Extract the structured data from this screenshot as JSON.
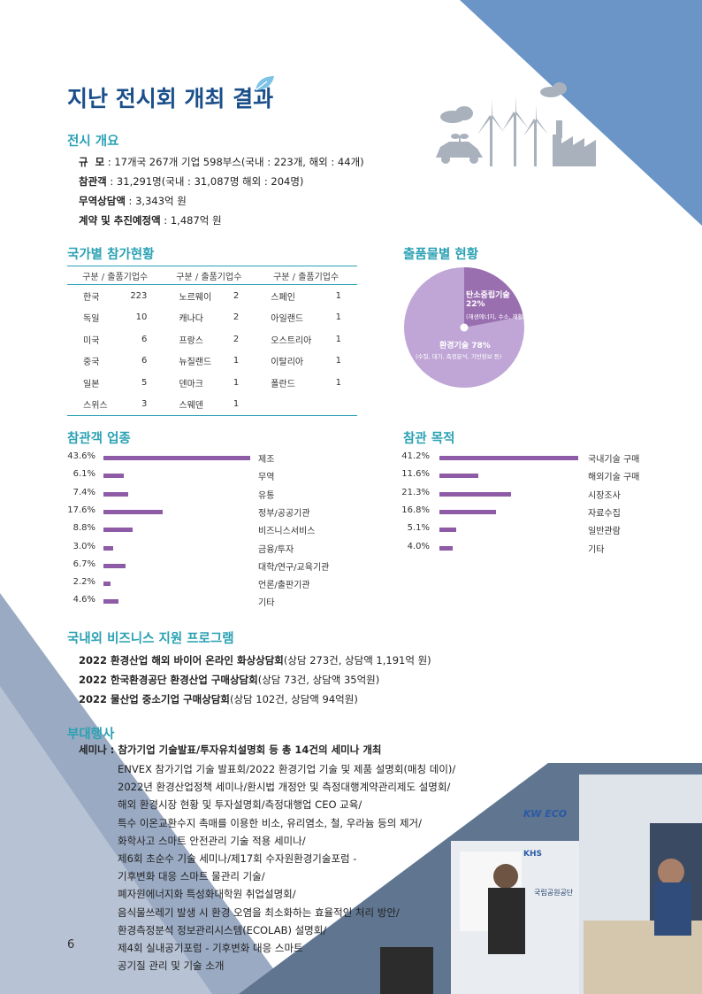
{
  "title": "지난 전시회 개최 결과",
  "overview": {
    "heading": "전시 개요",
    "scale_label": "규  모",
    "scale_value": " : 17개국 267개 기업 598부스(국내 : 223개, 해외 : 44개)",
    "visitors_label": "참관객",
    "visitors_value": " : 31,291명(국내 : 31,087명 해외 : 204명)",
    "trade_label": "무역상담액",
    "trade_value": " : 3,343억 원",
    "contract_label": "계약 및 추진예정액",
    "contract_value": " : 1,487억 원"
  },
  "country": {
    "heading": "국가별 참가현황",
    "col_header": "구분 / 출품기업수",
    "rows": [
      [
        [
          "한국",
          "223"
        ],
        [
          "노르웨이",
          "2"
        ],
        [
          "스페인",
          "1"
        ]
      ],
      [
        [
          "독일",
          "10"
        ],
        [
          "캐나다",
          "2"
        ],
        [
          "아일랜드",
          "1"
        ]
      ],
      [
        [
          "미국",
          "6"
        ],
        [
          "프랑스",
          "2"
        ],
        [
          "오스트리아",
          "1"
        ]
      ],
      [
        [
          "중국",
          "6"
        ],
        [
          "뉴질랜드",
          "1"
        ],
        [
          "이탈리아",
          "1"
        ]
      ],
      [
        [
          "일본",
          "5"
        ],
        [
          "덴마크",
          "1"
        ],
        [
          "폴란드",
          "1"
        ]
      ],
      [
        [
          "스위스",
          "3"
        ],
        [
          "스웨덴",
          "1"
        ],
        [
          "",
          ""
        ]
      ]
    ]
  },
  "products": {
    "heading": "출품물별 현황",
    "slice1_title": "탄소중립기술",
    "slice1_pct": "22%",
    "slice1_detail": "(재생에너지, 수소, 재활용, 그린뉴딜 등)",
    "slice2_title": "환경기술 78%",
    "slice2_detail": "(수질, 대기, 측정분석, 기반환보 등)",
    "color_carbon": "#9a6fb0",
    "color_env": "#c0a6d6"
  },
  "industry": {
    "heading": "참관객 업종",
    "items": [
      {
        "pct": "43.6%",
        "value": 43.6,
        "label": "제조"
      },
      {
        "pct": "6.1%",
        "value": 6.1,
        "label": "무역"
      },
      {
        "pct": "7.4%",
        "value": 7.4,
        "label": "유통"
      },
      {
        "pct": "17.6%",
        "value": 17.6,
        "label": "정부/공공기관"
      },
      {
        "pct": "8.8%",
        "value": 8.8,
        "label": "비즈니스서비스"
      },
      {
        "pct": "3.0%",
        "value": 3.0,
        "label": "금융/투자"
      },
      {
        "pct": "6.7%",
        "value": 6.7,
        "label": "대학/연구/교육기관"
      },
      {
        "pct": "2.2%",
        "value": 2.2,
        "label": "언론/출판기관"
      },
      {
        "pct": "4.6%",
        "value": 4.6,
        "label": "기타"
      }
    ]
  },
  "purpose": {
    "heading": "참관 목적",
    "items": [
      {
        "pct": "41.2%",
        "value": 41.2,
        "label": "국내기술 구매"
      },
      {
        "pct": "11.6%",
        "value": 11.6,
        "label": "해외기술 구매"
      },
      {
        "pct": "21.3%",
        "value": 21.3,
        "label": "시장조사"
      },
      {
        "pct": "16.8%",
        "value": 16.8,
        "label": "자료수집"
      },
      {
        "pct": "5.1%",
        "value": 5.1,
        "label": "일반관람"
      },
      {
        "pct": "4.0%",
        "value": 4.0,
        "label": "기타"
      }
    ]
  },
  "business": {
    "heading": "국내외 비즈니스 지원 프로그램",
    "items": [
      {
        "bold": "2022 환경산업 해외 바이어 온라인 화상상담회",
        "rest": "(상담 273건, 상담액 1,191억 원)"
      },
      {
        "bold": "2022 한국환경공단 환경산업 구매상담회",
        "rest": "(상담 73건, 상담액 35억원)"
      },
      {
        "bold": "2022 물산업 중소기업 구매상담회",
        "rest": "(상담 102건, 상담액 94억원)"
      }
    ]
  },
  "events": {
    "heading": "부대행사",
    "seminar_label": "세미나 : 참가기업 기술발표/투자유치설명회 등 총 14건의 세미나 개최",
    "lines": [
      "ENVEX 참가기업 기술 발표회/2022 환경기업 기술 및 제품 설명회(매칭 데이)/",
      "2022년 환경산업정책 세미나/환시법 개정안 및 측정대행계약관리제도 설명회/",
      "해외 환경시장 현황 및 투자설명회/측정대행업 CEO 교육/",
      "특수 이온교환수지 촉매를 이용한 비소, 유리염소, 철, 우라늄 등의 제거/",
      "화학사고 스마트 안전관리 기술 적용 세미나/",
      "제6회 초순수 기술 세미나/제17회 수자원환경기술포럼 -",
      "기후변화 대응 스마트 물관리 기술/",
      "폐자원에너지화 특성화대학원 취업설명회/",
      "음식물쓰레기 발생 시 환경 오염을 최소화하는 효율적인 처리 방안/",
      "환경측정분석 정보관리시스템(ECOLAB) 설명회/",
      "제4회 실내공기포럼 - 기후변화 대응 스마트",
      "공기질 관리 및 기술 소개"
    ]
  },
  "photo": {
    "sign1": "KW ECO",
    "sign2": "국립공원공단",
    "sign3": "KHS"
  },
  "page_number": "6"
}
